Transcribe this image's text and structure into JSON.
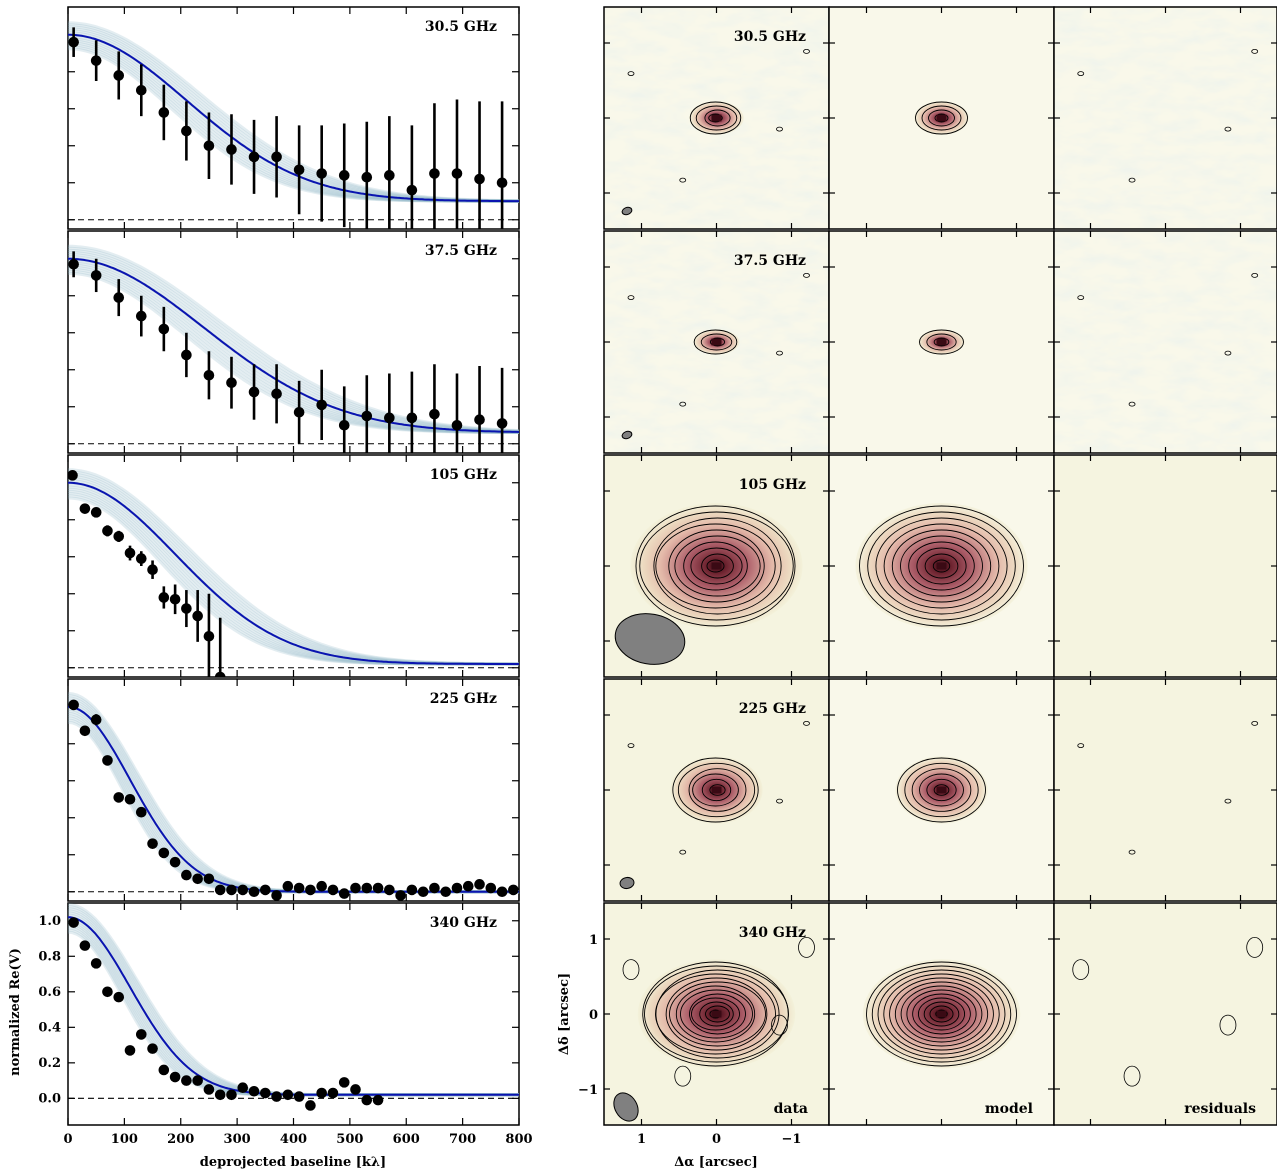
{
  "figure": {
    "left_xlabel": "deprojected baseline [kλ]",
    "left_ylabel": "normalized Re(V)",
    "right_xlabel": "Δα [arcsec]",
    "right_ylabel": "Δδ [arcsec]",
    "column_labels": [
      "data",
      "model",
      "residuals"
    ]
  },
  "chart_data": [
    {
      "type": "scatter",
      "panel": "30.5 GHz",
      "title": "30.5 GHz",
      "xlim": [
        0,
        800
      ],
      "ylim": [
        -0.05,
        1.15
      ],
      "x": [
        10,
        50,
        90,
        130,
        170,
        210,
        250,
        290,
        330,
        370,
        410,
        450,
        490,
        530,
        570,
        610,
        650,
        690,
        730,
        770
      ],
      "values": [
        0.96,
        0.86,
        0.78,
        0.7,
        0.58,
        0.48,
        0.4,
        0.38,
        0.34,
        0.34,
        0.27,
        0.25,
        0.24,
        0.23,
        0.24,
        0.16,
        0.25,
        0.25,
        0.22,
        0.2
      ],
      "errors": [
        0.08,
        0.11,
        0.13,
        0.14,
        0.15,
        0.16,
        0.18,
        0.19,
        0.2,
        0.22,
        0.24,
        0.26,
        0.28,
        0.3,
        0.32,
        0.35,
        0.38,
        0.4,
        0.42,
        0.44
      ],
      "model": {
        "amplitude": 0.9,
        "width": 210,
        "floor": 0.1
      }
    },
    {
      "type": "scatter",
      "panel": "37.5 GHz",
      "title": "37.5 GHz",
      "xlim": [
        0,
        800
      ],
      "ylim": [
        -0.05,
        1.15
      ],
      "x": [
        10,
        50,
        90,
        130,
        170,
        210,
        250,
        290,
        330,
        370,
        410,
        450,
        490,
        530,
        570,
        610,
        650,
        690,
        730,
        770
      ],
      "values": [
        0.97,
        0.91,
        0.79,
        0.69,
        0.62,
        0.48,
        0.37,
        0.33,
        0.28,
        0.27,
        0.17,
        0.21,
        0.1,
        0.15,
        0.14,
        0.14,
        0.16,
        0.1,
        0.13,
        0.11
      ],
      "errors": [
        0.07,
        0.09,
        0.1,
        0.11,
        0.12,
        0.12,
        0.13,
        0.14,
        0.15,
        0.16,
        0.17,
        0.19,
        0.21,
        0.22,
        0.24,
        0.25,
        0.27,
        0.28,
        0.29,
        0.3
      ],
      "model": {
        "amplitude": 0.94,
        "width": 240,
        "floor": 0.06
      }
    },
    {
      "type": "scatter",
      "panel": "105 GHz",
      "title": "105 GHz",
      "xlim": [
        0,
        800
      ],
      "ylim": [
        -0.05,
        1.15
      ],
      "x": [
        8,
        30,
        50,
        70,
        90,
        110,
        130,
        150,
        170,
        190,
        210,
        230,
        250,
        270
      ],
      "values": [
        1.04,
        0.86,
        0.84,
        0.74,
        0.71,
        0.62,
        0.59,
        0.53,
        0.38,
        0.37,
        0.32,
        0.28,
        0.17,
        -0.05
      ],
      "errors": [
        0.02,
        0.02,
        0.02,
        0.03,
        0.03,
        0.04,
        0.04,
        0.05,
        0.06,
        0.08,
        0.1,
        0.14,
        0.23,
        0.32
      ],
      "model": {
        "amplitude": 0.98,
        "width": 190,
        "floor": 0.02
      }
    },
    {
      "type": "scatter",
      "panel": "225 GHz",
      "title": "225 GHz",
      "xlim": [
        0,
        800
      ],
      "ylim": [
        -0.05,
        1.15
      ],
      "x": [
        10,
        30,
        50,
        70,
        90,
        110,
        130,
        150,
        170,
        190,
        210,
        230,
        250,
        270,
        290,
        310,
        330,
        350,
        370,
        390,
        410,
        430,
        450,
        470,
        490,
        510,
        530,
        550,
        570,
        590,
        610,
        630,
        650,
        670,
        690,
        710,
        730,
        750,
        770,
        790
      ],
      "values": [
        1.01,
        0.87,
        0.93,
        0.71,
        0.51,
        0.5,
        0.43,
        0.26,
        0.21,
        0.16,
        0.09,
        0.07,
        0.07,
        0.01,
        0.01,
        0.01,
        0.0,
        0.01,
        -0.02,
        0.03,
        0.02,
        0.01,
        0.03,
        0.01,
        -0.01,
        0.02,
        0.02,
        0.02,
        0.01,
        -0.02,
        0.01,
        0.0,
        0.02,
        0.0,
        0.02,
        0.03,
        0.04,
        0.02,
        0.0,
        0.01
      ],
      "errors": [
        0.02,
        0.02,
        0.03,
        0.01,
        0.01,
        0.01,
        0.01,
        0.01,
        0.01,
        0.01,
        0.01,
        0.01,
        0.01,
        0.01,
        0.01,
        0.01,
        0.01,
        0.01,
        0.01,
        0.01,
        0.01,
        0.01,
        0.01,
        0.01,
        0.01,
        0.01,
        0.01,
        0.01,
        0.01,
        0.01,
        0.01,
        0.01,
        0.01,
        0.01,
        0.01,
        0.01,
        0.01,
        0.01,
        0.01,
        0.01
      ],
      "model": {
        "amplitude": 1.0,
        "width": 110,
        "floor": 0.0
      }
    },
    {
      "type": "scatter",
      "panel": "340 GHz",
      "title": "340 GHz",
      "xlim": [
        0,
        800
      ],
      "ylim": [
        -0.15,
        1.1
      ],
      "yticks": [
        0.0,
        0.2,
        0.4,
        0.6,
        0.8,
        1.0
      ],
      "ytick_labels": [
        "0.0",
        "0.2",
        "0.4",
        "0.6",
        "0.8",
        "1.0"
      ],
      "xticks": [
        0,
        100,
        200,
        300,
        400,
        500,
        600,
        700,
        800
      ],
      "xtick_labels": [
        "0",
        "100",
        "200",
        "300",
        "400",
        "500",
        "600",
        "700",
        "800"
      ],
      "x": [
        10,
        30,
        50,
        70,
        90,
        110,
        130,
        150,
        170,
        190,
        210,
        230,
        250,
        270,
        290,
        310,
        330,
        350,
        370,
        390,
        410,
        430,
        450,
        470,
        490,
        510,
        530,
        550
      ],
      "values": [
        0.99,
        0.86,
        0.76,
        0.6,
        0.57,
        0.27,
        0.36,
        0.28,
        0.16,
        0.12,
        0.1,
        0.1,
        0.05,
        0.02,
        0.02,
        0.06,
        0.04,
        0.03,
        0.01,
        0.02,
        0.01,
        -0.04,
        0.03,
        0.03,
        0.09,
        0.05,
        -0.01,
        -0.01
      ],
      "errors": [
        0.01,
        0.01,
        0.01,
        0.01,
        0.01,
        0.01,
        0.01,
        0.01,
        0.01,
        0.01,
        0.01,
        0.01,
        0.01,
        0.01,
        0.01,
        0.01,
        0.01,
        0.01,
        0.01,
        0.01,
        0.01,
        0.01,
        0.01,
        0.01,
        0.01,
        0.01,
        0.01,
        0.01
      ],
      "model": {
        "amplitude": 1.0,
        "width": 110,
        "floor": 0.02
      }
    }
  ],
  "image_panels": {
    "rows": [
      "30.5 GHz",
      "37.5 GHz",
      "105 GHz",
      "225 GHz",
      "340 GHz"
    ],
    "x_ticks": [
      1,
      0,
      -1
    ],
    "x_tick_labels": [
      "1",
      "0",
      "−1"
    ],
    "y_ticks": [
      1,
      0,
      -1
    ],
    "y_tick_labels": [
      "1",
      "0",
      "−1"
    ],
    "colors": {
      "background": "#f9f8ea",
      "faint": "#f2f0d6",
      "mid": "#e0ae9f",
      "strong": "#a85562",
      "peak": "#3a0a14",
      "beam": "#808080"
    }
  }
}
